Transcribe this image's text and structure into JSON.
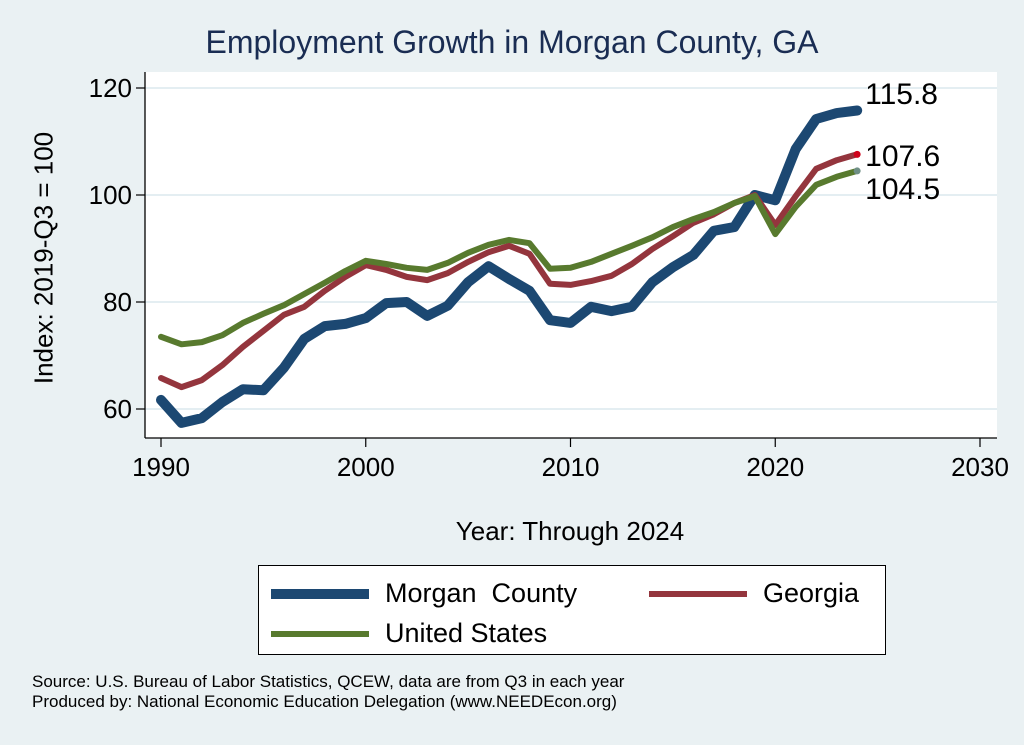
{
  "chart_data": {
    "type": "line",
    "title": "Employment Growth in Morgan County, GA",
    "xlabel": "Year: Through 2024",
    "ylabel": "Index: 2019-Q3 = 100",
    "xlim": [
      1990,
      2030
    ],
    "ylim": [
      55,
      123
    ],
    "x_ticks": [
      "1990",
      "2000",
      "2010",
      "2020",
      "2030"
    ],
    "y_ticks": [
      "60",
      "80",
      "100",
      "120"
    ],
    "grid": true,
    "legend_position": "bottom",
    "x": [
      1990,
      1991,
      1992,
      1993,
      1994,
      1995,
      1996,
      1997,
      1998,
      1999,
      2000,
      2001,
      2002,
      2003,
      2004,
      2005,
      2006,
      2007,
      2008,
      2009,
      2010,
      2011,
      2012,
      2013,
      2014,
      2015,
      2016,
      2017,
      2018,
      2019,
      2020,
      2021,
      2022,
      2023,
      2024
    ],
    "series": [
      {
        "name": "Morgan  County",
        "color": "#1c4872",
        "end_label": "115.8",
        "values": [
          61.7,
          57.4,
          58.3,
          61.3,
          63.7,
          63.5,
          67.7,
          73.1,
          75.5,
          75.9,
          77.0,
          79.8,
          80.0,
          77.4,
          79.3,
          83.7,
          86.7,
          84.3,
          82.1,
          76.6,
          76.1,
          79.1,
          78.3,
          79.1,
          83.7,
          86.5,
          88.8,
          93.3,
          94.0,
          100.0,
          99.0,
          108.6,
          114.2,
          115.3,
          115.8
        ]
      },
      {
        "name": "Georgia",
        "color": "#94353d",
        "end_label": "107.6",
        "end_dot_color": "#d0021b",
        "values": [
          65.8,
          64.1,
          65.4,
          68.2,
          71.6,
          74.6,
          77.6,
          79.1,
          82.1,
          84.7,
          86.9,
          86.0,
          84.7,
          84.1,
          85.4,
          87.5,
          89.3,
          90.5,
          89.0,
          83.4,
          83.2,
          83.9,
          84.9,
          87.1,
          89.9,
          92.3,
          94.8,
          96.4,
          98.5,
          100.0,
          94.4,
          99.8,
          104.9,
          106.5,
          107.6
        ]
      },
      {
        "name": "United States",
        "color": "#587a2e",
        "end_label": "104.5",
        "end_dot_color": "#6f8f86",
        "values": [
          73.5,
          72.1,
          72.5,
          73.8,
          76.1,
          77.8,
          79.4,
          81.5,
          83.6,
          85.8,
          87.7,
          87.1,
          86.4,
          86.0,
          87.3,
          89.2,
          90.7,
          91.6,
          91.0,
          86.2,
          86.4,
          87.5,
          89.0,
          90.5,
          92.1,
          94.0,
          95.5,
          96.8,
          98.5,
          99.8,
          92.7,
          97.8,
          101.9,
          103.4,
          104.5
        ]
      }
    ]
  },
  "footnotes": {
    "source": "Source: U.S. Bureau of Labor Statistics, QCEW, data are from Q3 in each year",
    "produced": "Produced by: National Economic Education Delegation (www.NEEDEcon.org)"
  }
}
